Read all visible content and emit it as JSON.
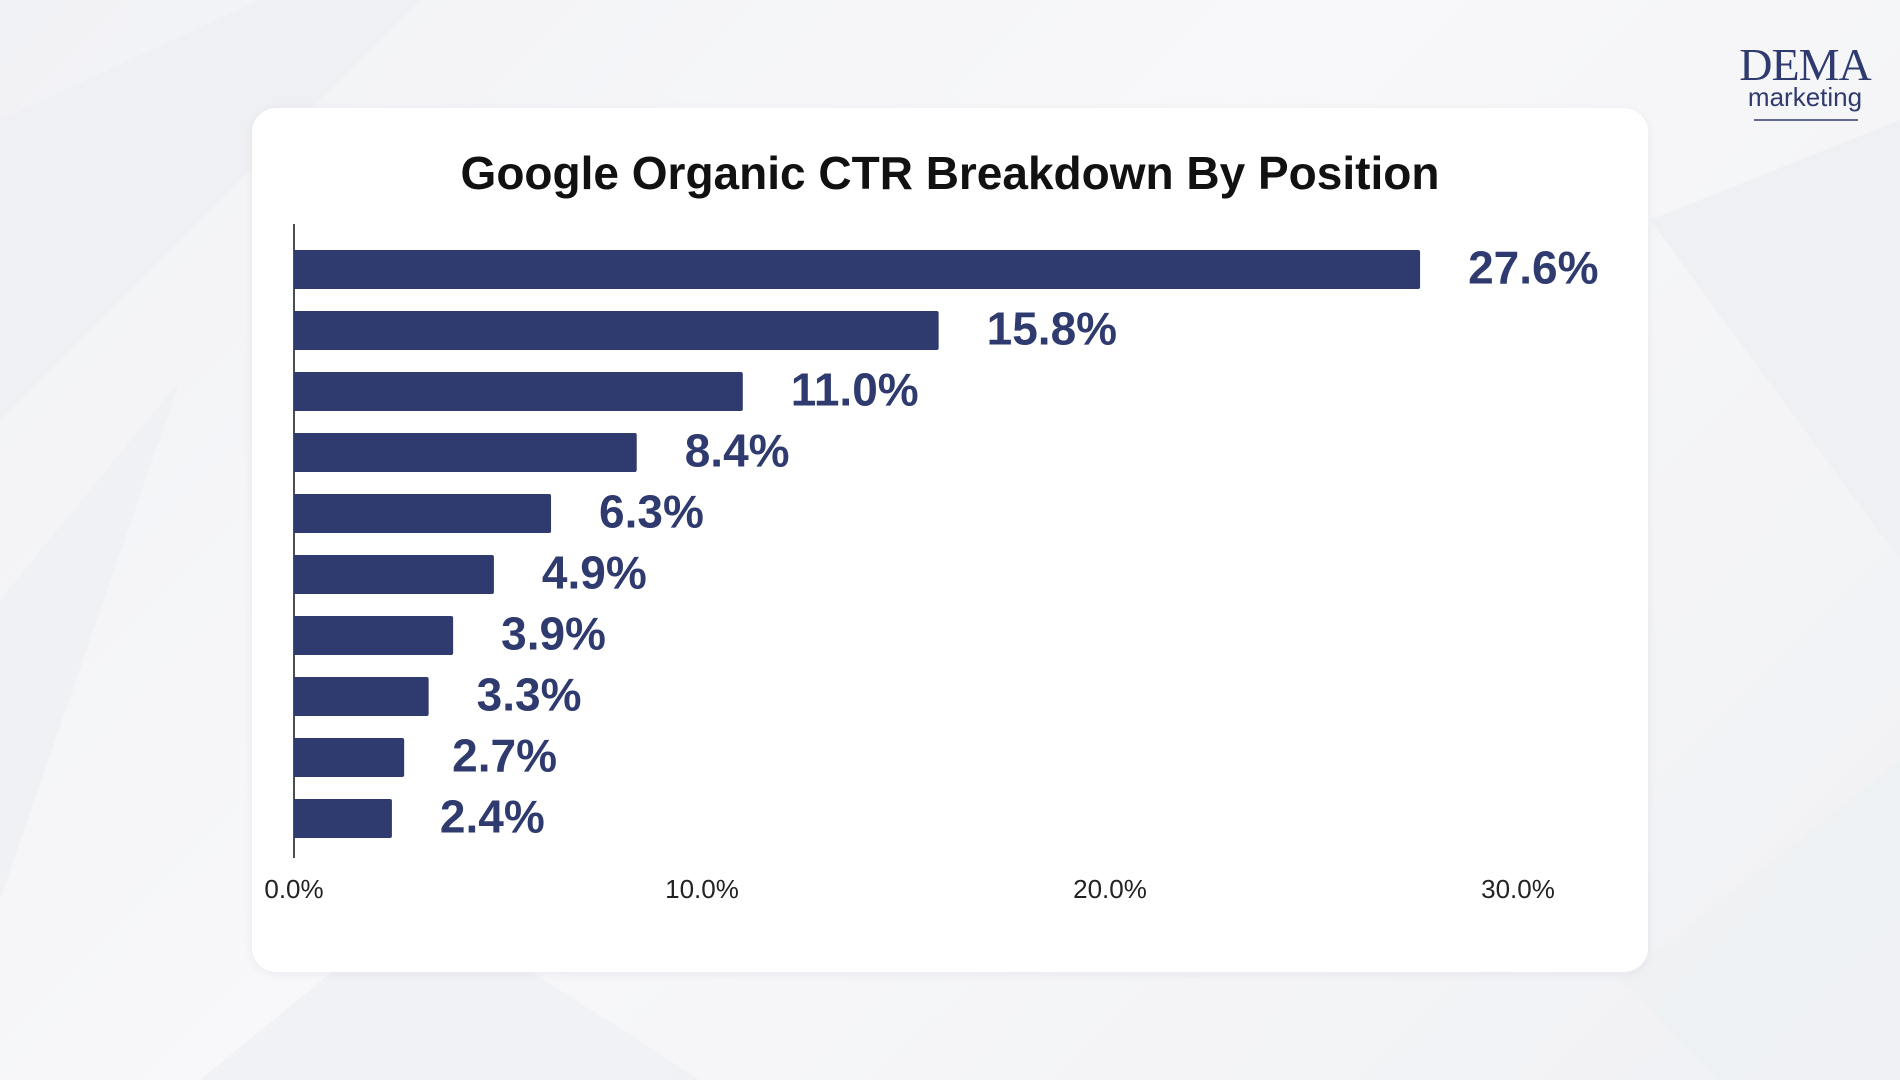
{
  "theme": {
    "background": "#f3f4f7",
    "card": "#ffffff",
    "bar_color": "#2f3b6e",
    "label_color": "#2f3b6e",
    "title_color": "#111111"
  },
  "logo": {
    "line1": "DEMA",
    "line2": "marketing",
    "color": "#2f3b6e"
  },
  "chart_data": {
    "type": "bar",
    "orientation": "horizontal",
    "title": "Google Organic CTR Breakdown By Position",
    "xlabel": "",
    "ylabel": "",
    "xlim": [
      0,
      30
    ],
    "x_ticks": [
      0,
      10,
      20,
      30
    ],
    "x_tick_labels": [
      "0.0%",
      "10.0%",
      "20.0%",
      "30.0%"
    ],
    "values": [
      27.6,
      15.8,
      11.0,
      8.4,
      6.3,
      4.9,
      3.9,
      3.3,
      2.7,
      2.4
    ],
    "data_labels": [
      "27.6%",
      "15.8%",
      "11.0%",
      "8.4%",
      "6.3%",
      "4.9%",
      "3.9%",
      "3.3%",
      "2.7%",
      "2.4%"
    ],
    "grid": false,
    "legend": "none"
  }
}
